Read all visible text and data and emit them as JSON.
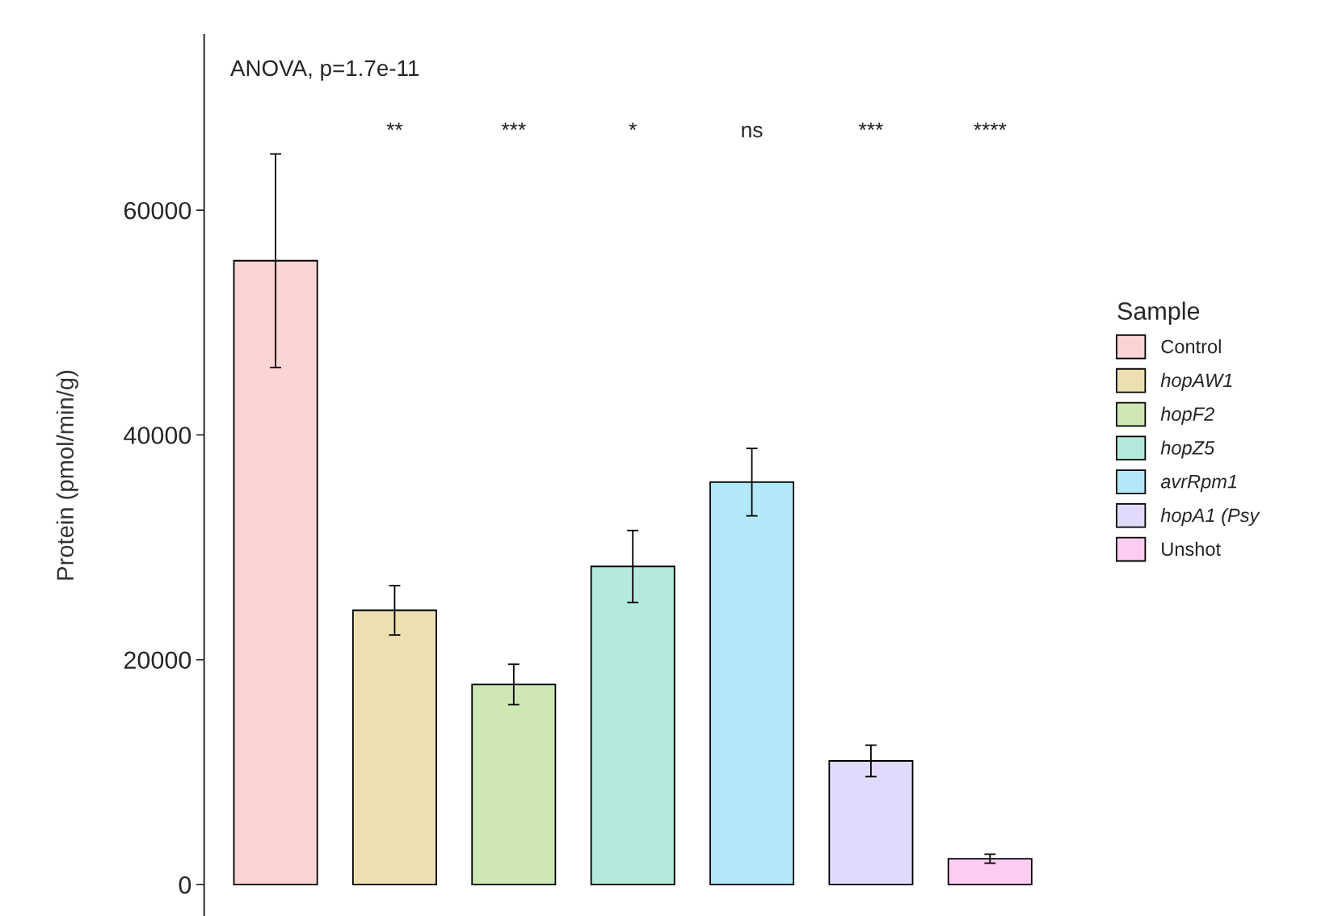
{
  "chart_data": {
    "type": "bar",
    "stacked": true,
    "ylabel": "Protein (pmol/min/g)",
    "legend_title": "Sample",
    "legend": "right",
    "categories": [
      null,
      null,
      null,
      null,
      null,
      null,
      null
    ],
    "series": [
      {
        "name": "Control",
        "color": "#fbd4d3",
        "values": [
          55500,
          null,
          null,
          null,
          null,
          null,
          null
        ],
        "errors": [
          9500,
          null,
          null,
          null,
          null,
          null,
          null
        ]
      },
      {
        "name": "hopAW1",
        "color": "#ecdfb0",
        "values": [
          null,
          24400,
          null,
          null,
          null,
          null,
          null
        ],
        "errors": [
          null,
          2200,
          null,
          null,
          null,
          null,
          null
        ]
      },
      {
        "name": "hopF2",
        "color": "#cde8b3",
        "values": [
          null,
          null,
          17800,
          null,
          null,
          null,
          null
        ],
        "errors": [
          null,
          null,
          1800,
          null,
          null,
          null,
          null
        ]
      },
      {
        "name": "hopZ5",
        "color": "#b3eadc",
        "values": [
          null,
          null,
          null,
          28300,
          null,
          null,
          null
        ],
        "errors": [
          null,
          null,
          null,
          3200,
          null,
          null,
          null
        ]
      },
      {
        "name": "avrRpm1",
        "color": "#b3e8f6",
        "values": [
          null,
          null,
          null,
          null,
          35800,
          null,
          null
        ],
        "errors": [
          null,
          null,
          null,
          null,
          3000,
          null,
          null
        ]
      },
      {
        "name": "hopA1 (Psy",
        "color": "#e2dafc",
        "values": [
          null,
          null,
          null,
          null,
          null,
          11000,
          null
        ],
        "errors": [
          null,
          null,
          null,
          null,
          null,
          1400,
          null
        ]
      },
      {
        "name": "Unshot",
        "color": "#fccdf0",
        "values": [
          null,
          null,
          null,
          null,
          null,
          null,
          2300
        ],
        "errors": [
          null,
          null,
          null,
          null,
          null,
          null,
          400
        ]
      }
    ],
    "ylim": [
      -2800,
      75600
    ],
    "yticks": [
      0,
      20000,
      40000,
      60000
    ],
    "grid": false,
    "annotations": [
      "ANOVA, p=1.7e-11",
      "**",
      "***",
      "*",
      "ns",
      "***",
      "****"
    ]
  }
}
